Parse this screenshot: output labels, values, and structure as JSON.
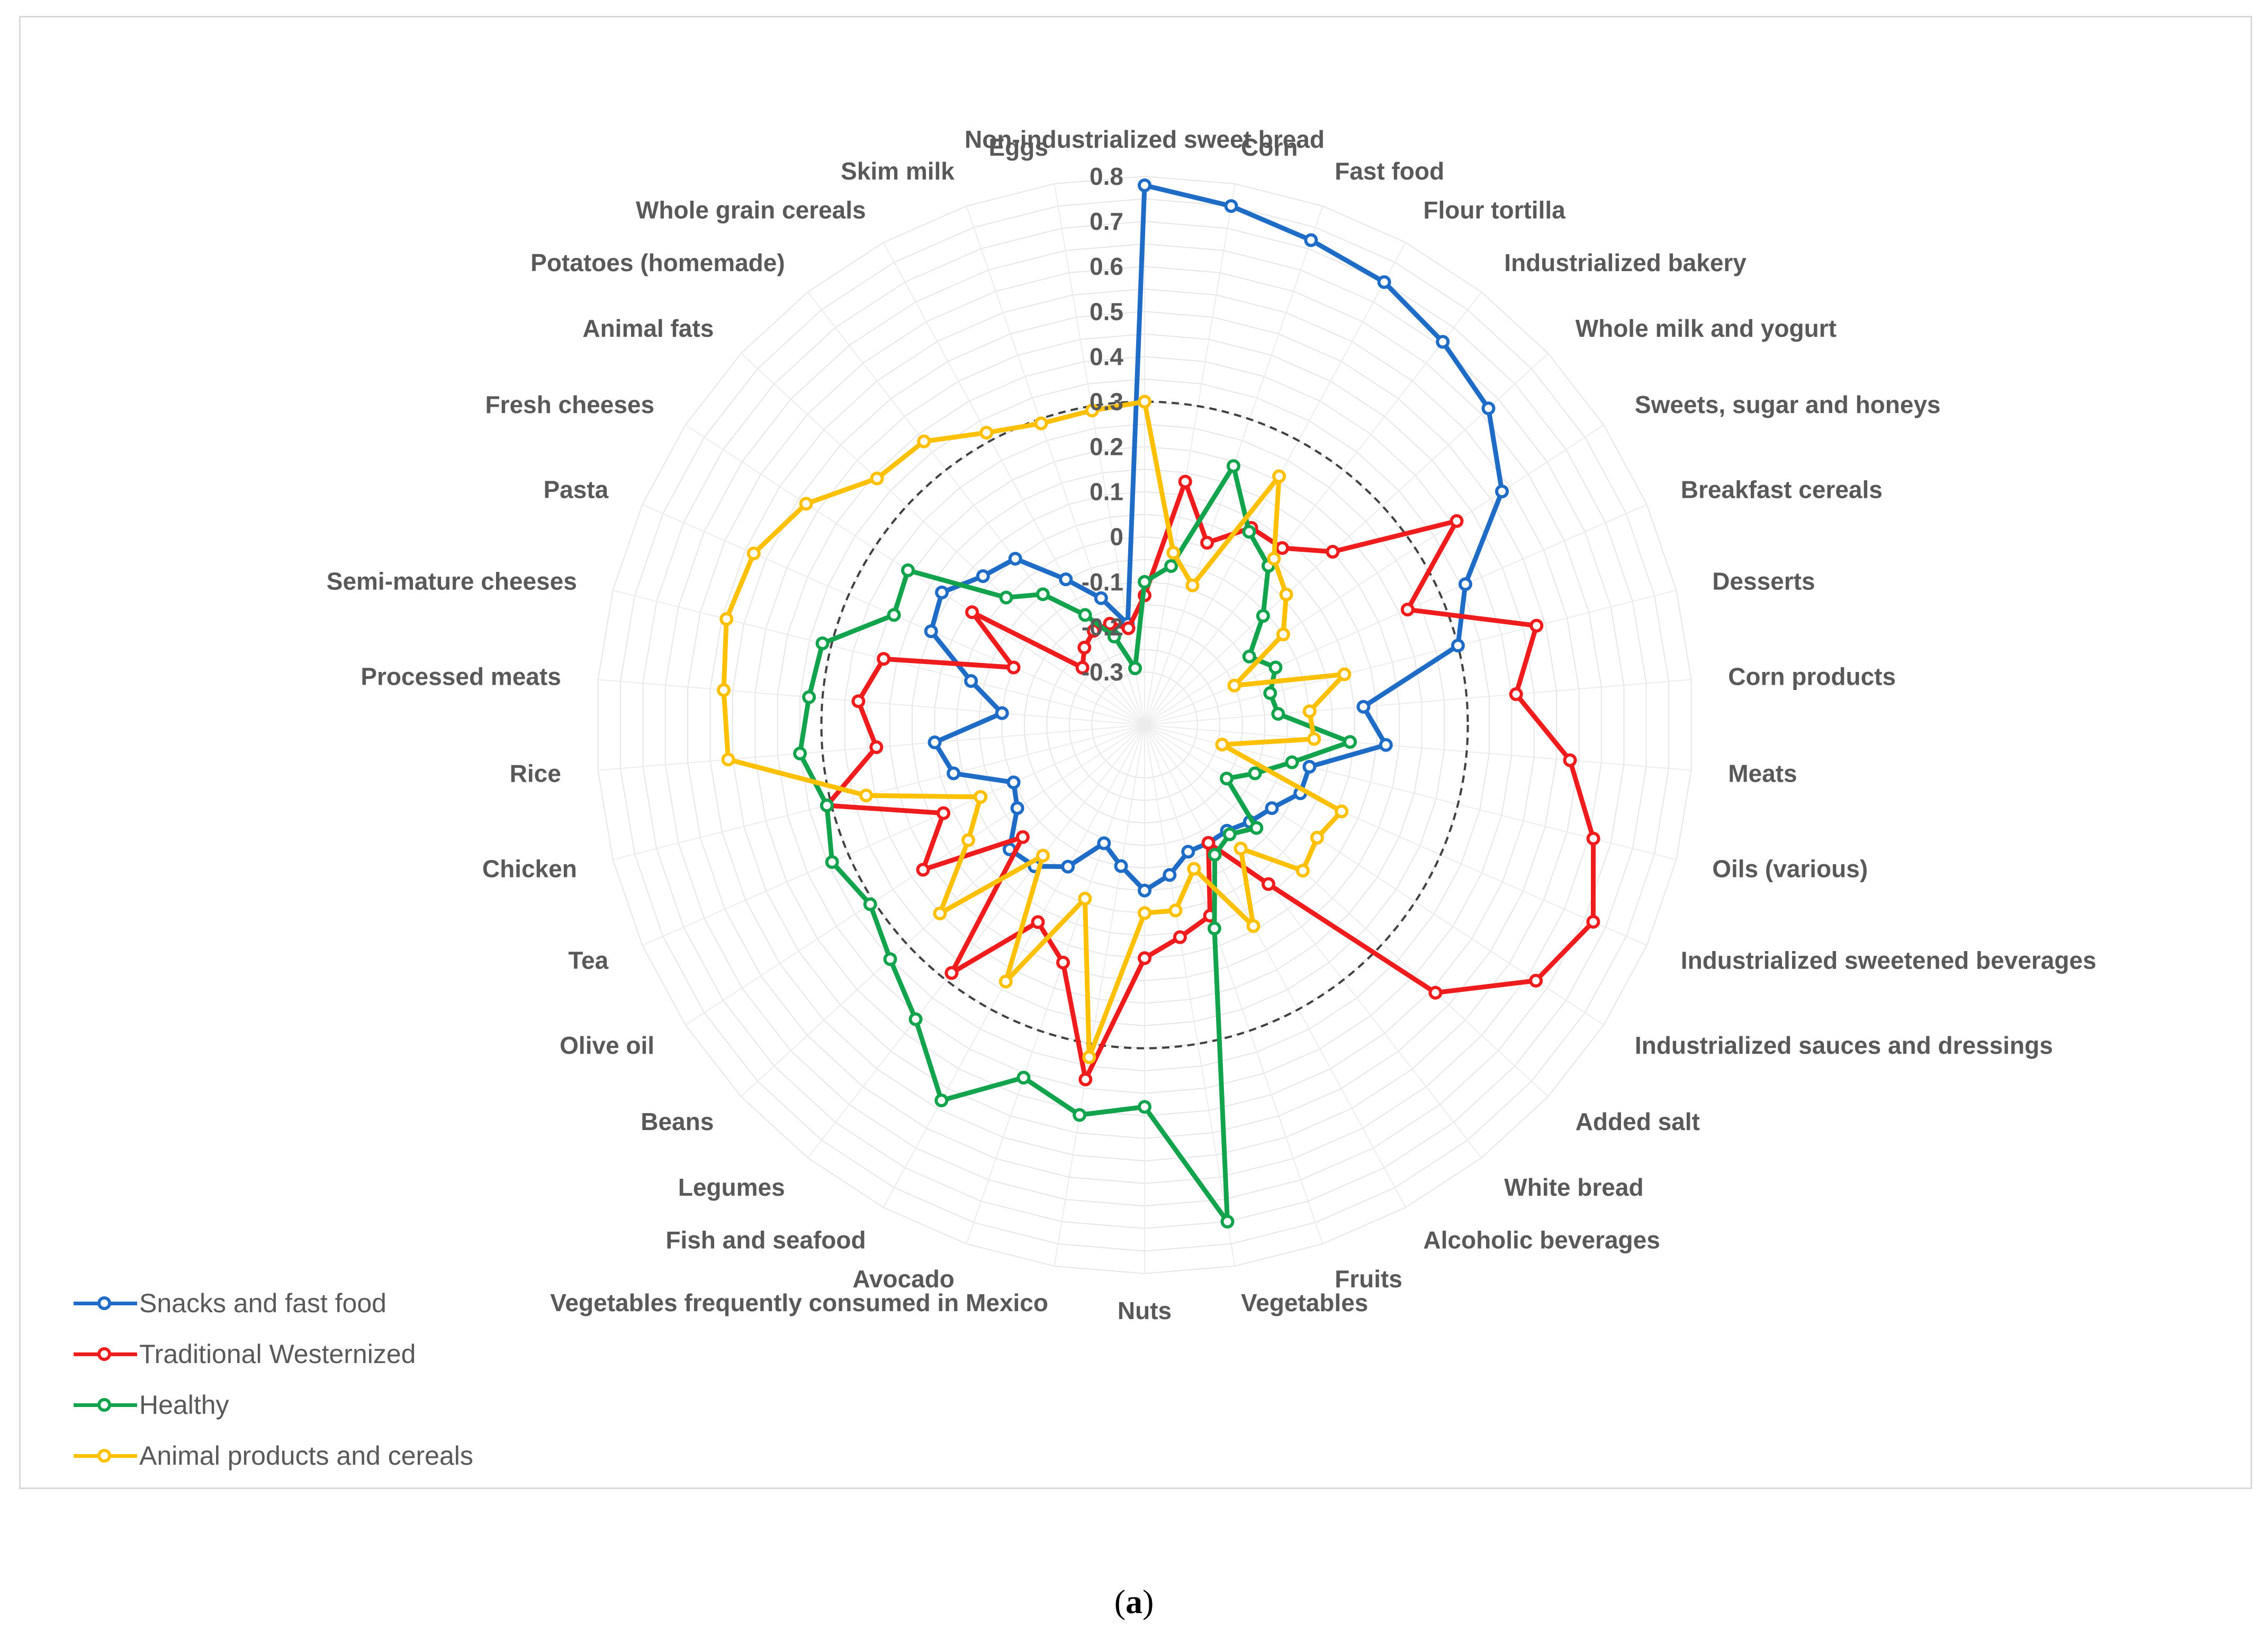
{
  "chart_data": {
    "type": "radar",
    "title": "",
    "rmin": -0.3,
    "rmax": 0.8,
    "tick_labels": [
      "-0.3",
      "-0.2",
      "-0.1",
      "0",
      "0.1",
      "0.2",
      "0.3",
      "0.4",
      "0.5",
      "0.6",
      "0.7",
      "0.8"
    ],
    "tick_values": [
      -0.3,
      -0.2,
      -0.1,
      0,
      0.1,
      0.2,
      0.3,
      0.4,
      0.5,
      0.6,
      0.7,
      0.8
    ],
    "reference_circle": 0.3,
    "categories": [
      "Non-industrialized sweet bread",
      "Corn",
      "Fast food",
      "Flour tortilla",
      "Industrialized bakery",
      "Whole milk and yogurt",
      "Sweets, sugar and honeys",
      "Breakfast cereals",
      "Desserts",
      "Corn products",
      "Meats",
      "Oils (various)",
      "Industrialized sweetened beverages",
      "Industrialized sauces and dressings",
      "Added salt",
      "White bread",
      "Alcoholic beverages",
      "Fruits",
      "Vegetables",
      "Nuts",
      "Vegetables frequently consumed in Mexico",
      "Avocado",
      "Fish and seafood",
      "Legumes",
      "Beans",
      "Olive oil",
      "Tea",
      "Chicken",
      "Rice",
      "Processed meats",
      "Semi-mature cheeses",
      "Pasta",
      "Fresh cheeses",
      "Animal fats",
      "Potatoes (homemade)",
      "Whole grain cereals",
      "Skim milk",
      "Eggs"
    ],
    "series": [
      {
        "name": "Snacks and fast food",
        "color": "#1f6cc7",
        "values": [
          0.78,
          0.75,
          0.72,
          0.7,
          0.66,
          0.62,
          0.53,
          0.36,
          0.3,
          0.07,
          0.12,
          -0.04,
          -0.04,
          -0.08,
          -0.1,
          -0.12,
          -0.12,
          -0.12,
          -0.08,
          -0.05,
          -0.1,
          -0.14,
          -0.06,
          -0.02,
          -0.01,
          -0.08,
          -0.1,
          0.02,
          0.05,
          -0.1,
          -0.02,
          0.1,
          0.12,
          0.07,
          0.05,
          -0.05,
          -0.12,
          -0.19
        ]
      },
      {
        "name": "Traditional Westernized",
        "color": "#ee1c1c",
        "values": [
          -0.13,
          0.13,
          0.01,
          0.08,
          0.08,
          0.15,
          0.41,
          0.22,
          0.48,
          0.41,
          0.53,
          0.61,
          0.67,
          0.62,
          0.46,
          0.03,
          -0.12,
          0.03,
          0.06,
          0.1,
          0.38,
          0.14,
          0.08,
          0.28,
          -0.05,
          0.17,
          0.07,
          0.31,
          0.18,
          0.22,
          0.18,
          -0.1,
          0.04,
          -0.23,
          -0.2,
          -0.18,
          -0.18,
          -0.2
        ]
      },
      {
        "name": "Healthy",
        "color": "#13a34d",
        "values": [
          -0.1,
          -0.06,
          0.19,
          0.07,
          0.03,
          -0.06,
          -0.14,
          -0.1,
          -0.13,
          -0.12,
          0.04,
          -0.08,
          -0.15,
          -0.2,
          -0.08,
          -0.11,
          -0.09,
          0.06,
          0.7,
          0.43,
          0.46,
          0.41,
          0.53,
          0.41,
          0.35,
          0.31,
          0.34,
          0.31,
          0.35,
          0.33,
          0.32,
          0.19,
          0.21,
          0.0,
          -0.05,
          -0.14,
          -0.21,
          -0.29
        ]
      },
      {
        "name": "Animal products and cereals",
        "color": "#ffc000",
        "values": [
          0.3,
          -0.03,
          -0.09,
          0.21,
          0.05,
          0.01,
          -0.05,
          -0.2,
          0.04,
          -0.05,
          -0.04,
          -0.24,
          0.06,
          0.04,
          0.06,
          -0.07,
          0.09,
          -0.08,
          0.0,
          0.0,
          0.33,
          -0.01,
          0.23,
          -0.05,
          0.2,
          0.05,
          -0.02,
          0.22,
          0.51,
          0.52,
          0.54,
          0.53,
          0.48,
          0.39,
          0.38,
          0.32,
          0.29,
          0.29
        ]
      }
    ],
    "caption_letter": "a"
  },
  "caption": {
    "open": "(",
    "close": ")"
  }
}
